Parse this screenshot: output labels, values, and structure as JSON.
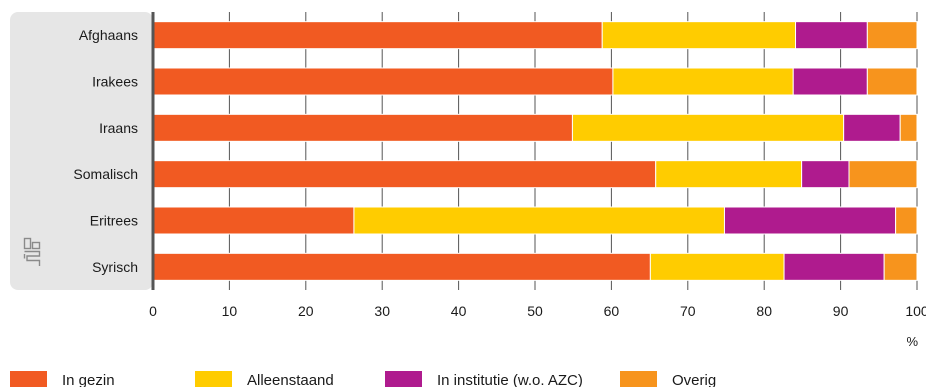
{
  "chart_data": {
    "type": "bar",
    "orientation": "horizontal",
    "stacked": true,
    "categories": [
      "Afghaans",
      "Irakees",
      "Iraans",
      "Somalisch",
      "Eritrees",
      "Syrisch"
    ],
    "series": [
      {
        "name": "In gezin",
        "color": "#f15a22",
        "values": [
          58.8,
          60.2,
          54.9,
          65.8,
          26.3,
          65.1
        ]
      },
      {
        "name": "Alleenstaand",
        "color": "#ffcc00",
        "values": [
          25.3,
          23.6,
          35.5,
          19.1,
          48.5,
          17.5
        ]
      },
      {
        "name": "In institutie (w.o. AZC)",
        "color": "#af1b8e",
        "values": [
          9.4,
          9.7,
          7.4,
          6.2,
          22.4,
          13.1
        ]
      },
      {
        "name": "Overig",
        "color": "#f7941d",
        "values": [
          6.5,
          6.5,
          2.2,
          8.9,
          2.8,
          4.3
        ]
      }
    ],
    "xlim": [
      0,
      100
    ],
    "xticks": [
      "0",
      "10",
      "20",
      "30",
      "40",
      "50",
      "60",
      "70",
      "80",
      "90",
      "100"
    ],
    "xunit": "%",
    "grid": true,
    "legend_position": "bottom"
  },
  "logo": "cbs-logo-icon",
  "colors": {
    "panel": "#e6e6e6",
    "axis": "#555555",
    "grid": "#555555"
  }
}
